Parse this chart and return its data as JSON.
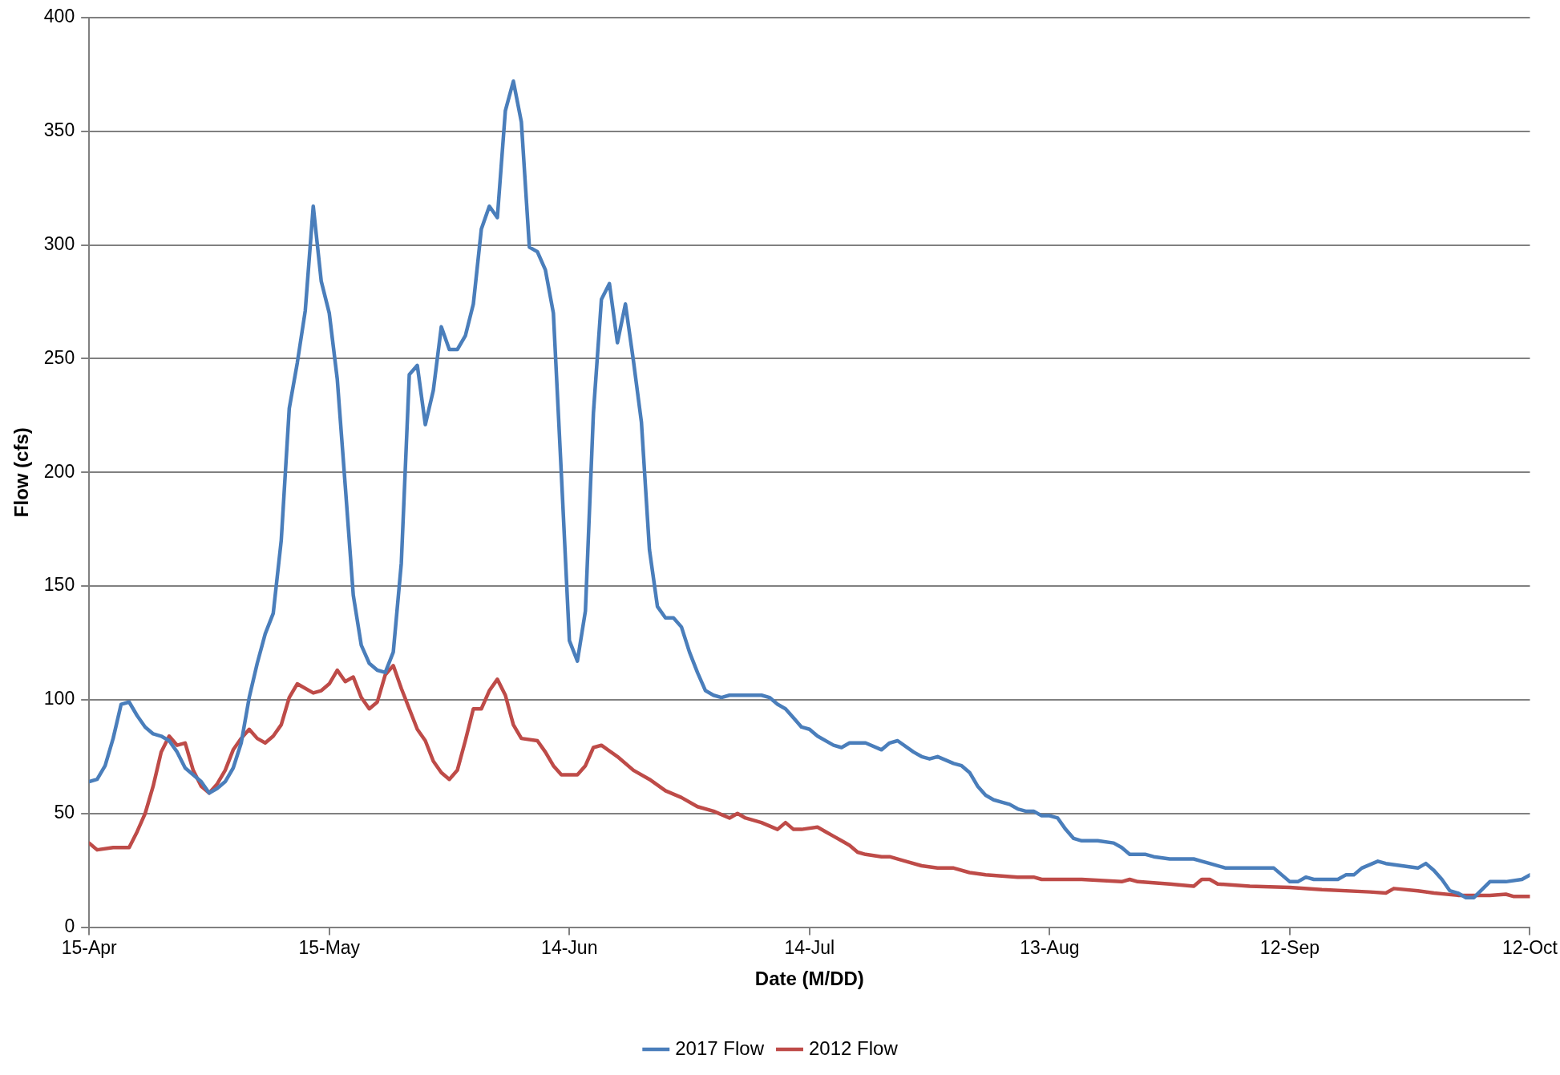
{
  "chart_data": {
    "type": "line",
    "xlabel": "Date (M/DD)",
    "ylabel": "Flow (cfs)",
    "xlim": [
      "--04-15",
      "--10-12"
    ],
    "xticks": [
      {
        "value": "--04-15",
        "label": "15-Apr"
      },
      {
        "value": "--05-15",
        "label": "15-May"
      },
      {
        "value": "--06-14",
        "label": "14-Jun"
      },
      {
        "value": "--07-14",
        "label": "14-Jul"
      },
      {
        "value": "--08-13",
        "label": "13-Aug"
      },
      {
        "value": "--09-12",
        "label": "12-Sep"
      },
      {
        "value": "--10-12",
        "label": "12-Oct"
      }
    ],
    "ylim": [
      0,
      400
    ],
    "yticks": [
      0,
      50,
      100,
      150,
      200,
      250,
      300,
      350,
      400
    ],
    "grid": "y",
    "legend": "bottom",
    "marker": "none",
    "line_style": "solid",
    "series": [
      {
        "name": "2017 Flow",
        "color": "#4a7ebb",
        "x": [
          "--04-15",
          "--04-16",
          "--04-17",
          "--04-18",
          "--04-19",
          "--04-20",
          "--04-21",
          "--04-22",
          "--04-23",
          "--04-24",
          "--04-25",
          "--04-26",
          "--04-27",
          "--04-29",
          "--04-30",
          "--05-01",
          "--05-02",
          "--05-03",
          "--05-04",
          "--05-05",
          "--05-06",
          "--05-07",
          "--05-08",
          "--05-09",
          "--05-10",
          "--05-11",
          "--05-12",
          "--05-13",
          "--05-14",
          "--05-15",
          "--05-16",
          "--05-17",
          "--05-18",
          "--05-19",
          "--05-20",
          "--05-21",
          "--05-22",
          "--05-23",
          "--05-24",
          "--05-25",
          "--05-26",
          "--05-27",
          "--05-28",
          "--05-29",
          "--05-30",
          "--05-31",
          "--06-01",
          "--06-02",
          "--06-03",
          "--06-04",
          "--06-05",
          "--06-06",
          "--06-07",
          "--06-08",
          "--06-09",
          "--06-10",
          "--06-11",
          "--06-12",
          "--06-13",
          "--06-14",
          "--06-15",
          "--06-16",
          "--06-17",
          "--06-18",
          "--06-19",
          "--06-20",
          "--06-21",
          "--06-22",
          "--06-23",
          "--06-24",
          "--06-25",
          "--06-26",
          "--06-27",
          "--06-28",
          "--06-29",
          "--06-30",
          "--07-01",
          "--07-02",
          "--07-03",
          "--07-04",
          "--07-08",
          "--07-09",
          "--07-10",
          "--07-11",
          "--07-12",
          "--07-13",
          "--07-14",
          "--07-15",
          "--07-17",
          "--07-18",
          "--07-19",
          "--07-21",
          "--07-23",
          "--07-24",
          "--07-25",
          "--07-27",
          "--07-28",
          "--07-29",
          "--07-30",
          "--08-01",
          "--08-02",
          "--08-03",
          "--08-04",
          "--08-05",
          "--08-06",
          "--08-07",
          "--08-08",
          "--08-09",
          "--08-10",
          "--08-11",
          "--08-12",
          "--08-13",
          "--08-14",
          "--08-15",
          "--08-16",
          "--08-17",
          "--08-19",
          "--08-21",
          "--08-22",
          "--08-23",
          "--08-24",
          "--08-25",
          "--08-26",
          "--08-28",
          "--08-29",
          "--08-31",
          "--09-01",
          "--09-02",
          "--09-04",
          "--09-10",
          "--09-11",
          "--09-12",
          "--09-13",
          "--09-14",
          "--09-15",
          "--09-18",
          "--09-19",
          "--09-20",
          "--09-21",
          "--09-23",
          "--09-24",
          "--09-28",
          "--09-29",
          "--09-30",
          "--10-01",
          "--10-02",
          "--10-03",
          "--10-04",
          "--10-05",
          "--10-07",
          "--10-08",
          "--10-09",
          "--10-11",
          "--10-12"
        ],
        "values": [
          64,
          65,
          71,
          83,
          98,
          99,
          93,
          88,
          85,
          84,
          82,
          77,
          70,
          64,
          59,
          61,
          64,
          70,
          81,
          101,
          116,
          129,
          138,
          170,
          228,
          248,
          271,
          317,
          284,
          270,
          241,
          194,
          146,
          124,
          116,
          113,
          112,
          121,
          160,
          243,
          247,
          221,
          236,
          264,
          254,
          254,
          260,
          274,
          307,
          317,
          312,
          359,
          372,
          354,
          299,
          297,
          289,
          270,
          199,
          126,
          117,
          139,
          226,
          276,
          283,
          257,
          274,
          249,
          222,
          166,
          141,
          136,
          136,
          132,
          121,
          112,
          104,
          102,
          101,
          102,
          102,
          101,
          98,
          96,
          92,
          88,
          87,
          84,
          80,
          79,
          81,
          81,
          78,
          81,
          82,
          77,
          75,
          74,
          75,
          72,
          71,
          68,
          62,
          58,
          56,
          55,
          54,
          52,
          51,
          51,
          49,
          49,
          48,
          43,
          39,
          38,
          38,
          37,
          35,
          32,
          32,
          32,
          31,
          30,
          30,
          30,
          29,
          28,
          26,
          26,
          23,
          20,
          20,
          22,
          21,
          21,
          23,
          23,
          26,
          29,
          28,
          26,
          28,
          25,
          21,
          16,
          15,
          13,
          13,
          20,
          20,
          20,
          21,
          23
        ]
      },
      {
        "name": "2012 Flow",
        "color": "#be4b48",
        "x": [
          "--04-15",
          "--04-16",
          "--04-18",
          "--04-20",
          "--04-21",
          "--04-22",
          "--04-23",
          "--04-24",
          "--04-25",
          "--04-26",
          "--04-27",
          "--04-28",
          "--04-29",
          "--04-30",
          "--05-01",
          "--05-02",
          "--05-03",
          "--05-04",
          "--05-05",
          "--05-06",
          "--05-07",
          "--05-08",
          "--05-09",
          "--05-10",
          "--05-11",
          "--05-13",
          "--05-14",
          "--05-15",
          "--05-16",
          "--05-17",
          "--05-18",
          "--05-19",
          "--05-20",
          "--05-21",
          "--05-22",
          "--05-23",
          "--05-24",
          "--05-25",
          "--05-26",
          "--05-27",
          "--05-28",
          "--05-29",
          "--05-30",
          "--05-31",
          "--06-01",
          "--06-02",
          "--06-03",
          "--06-04",
          "--06-05",
          "--06-06",
          "--06-07",
          "--06-08",
          "--06-10",
          "--06-11",
          "--06-12",
          "--06-13",
          "--06-15",
          "--06-16",
          "--06-17",
          "--06-18",
          "--06-20",
          "--06-22",
          "--06-24",
          "--06-26",
          "--06-28",
          "--06-30",
          "--07-02",
          "--07-04",
          "--07-05",
          "--07-06",
          "--07-08",
          "--07-10",
          "--07-11",
          "--07-12",
          "--07-13",
          "--07-15",
          "--07-16",
          "--07-17",
          "--07-18",
          "--07-19",
          "--07-20",
          "--07-21",
          "--07-23",
          "--07-24",
          "--07-26",
          "--07-28",
          "--07-30",
          "--08-01",
          "--08-03",
          "--08-05",
          "--08-09",
          "--08-11",
          "--08-12",
          "--08-17",
          "--08-22",
          "--08-23",
          "--08-24",
          "--08-28",
          "--08-31",
          "--09-01",
          "--09-02",
          "--09-03",
          "--09-07",
          "--09-12",
          "--09-16",
          "--09-22",
          "--09-24",
          "--09-25",
          "--09-28",
          "--09-30",
          "--10-03",
          "--10-07",
          "--10-09",
          "--10-10",
          "--10-12"
        ],
        "values": [
          37,
          34,
          35,
          35,
          42,
          50,
          62,
          77,
          84,
          80,
          81,
          69,
          62,
          59,
          63,
          69,
          78,
          83,
          87,
          83,
          81,
          84,
          89,
          101,
          107,
          103,
          104,
          107,
          113,
          108,
          110,
          101,
          96,
          99,
          111,
          115,
          105,
          96,
          87,
          82,
          73,
          68,
          65,
          69,
          82,
          96,
          96,
          104,
          109,
          102,
          89,
          83,
          82,
          77,
          71,
          67,
          67,
          71,
          79,
          80,
          75,
          69,
          65,
          60,
          57,
          53,
          51,
          48,
          50,
          48,
          46,
          43,
          46,
          43,
          43,
          44,
          42,
          40,
          38,
          36,
          33,
          32,
          31,
          31,
          29,
          27,
          26,
          26,
          24,
          23,
          22,
          22,
          21,
          21,
          20,
          21,
          20,
          19,
          18,
          21,
          21,
          19,
          18,
          17.5,
          16.5,
          15.5,
          15,
          17,
          16,
          15,
          14,
          14,
          14.5,
          13.5,
          13.5
        ]
      }
    ]
  }
}
